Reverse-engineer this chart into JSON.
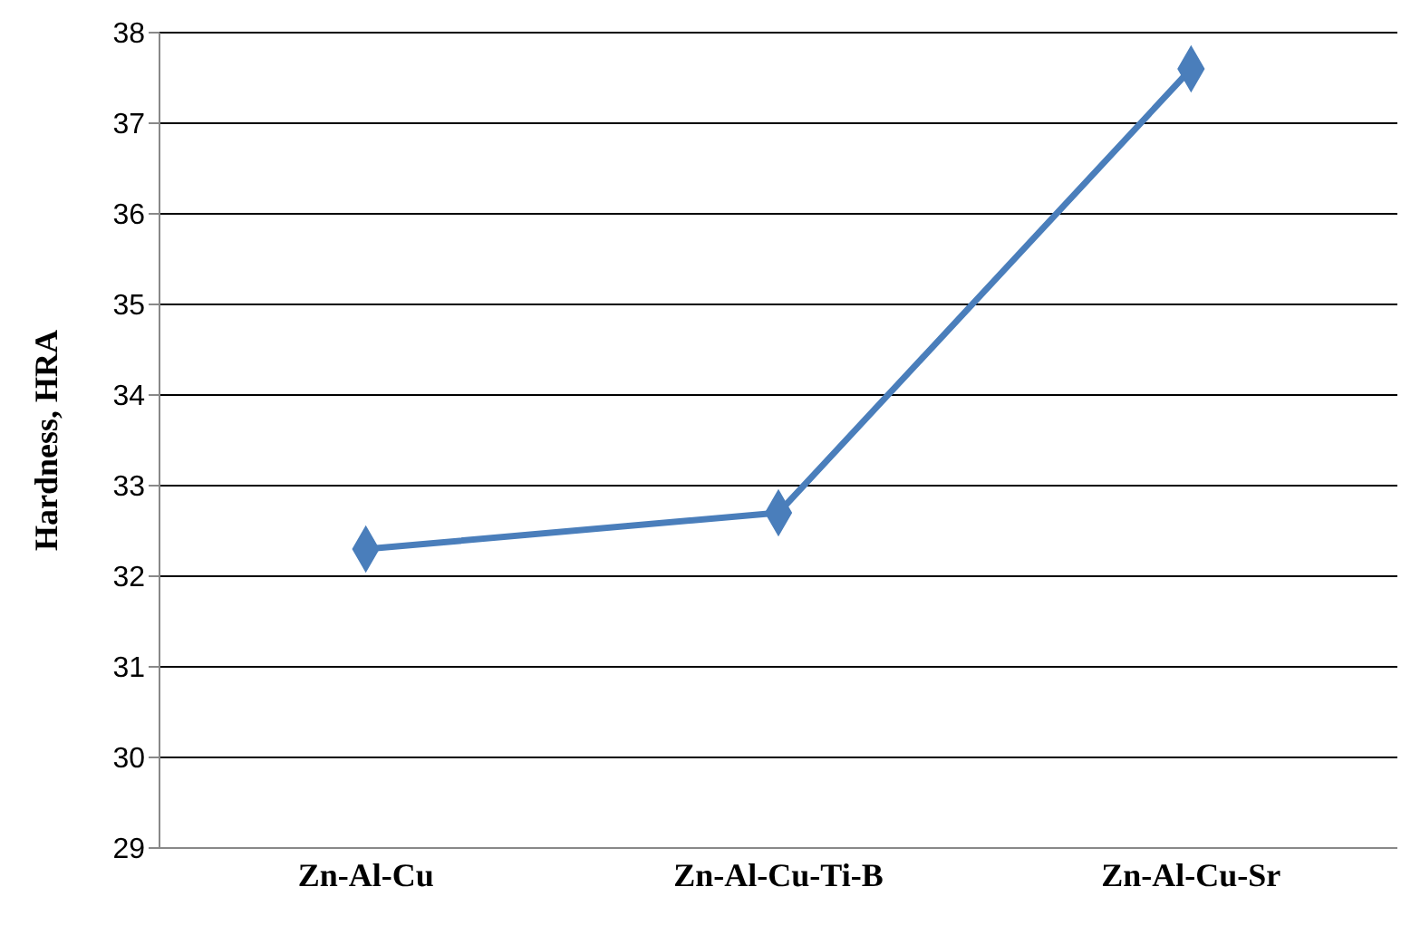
{
  "chart_data": {
    "type": "line",
    "ylabel": "Hardness, HRA",
    "categories": [
      "Zn-Al-Cu",
      "Zn-Al-Cu-Ti-B",
      "Zn-Al-Cu-Sr"
    ],
    "series": [
      {
        "color": "#4a7ebb",
        "values": [
          32.3,
          32.7,
          37.6
        ]
      }
    ],
    "ylim": [
      29,
      38
    ],
    "yticks": [
      29,
      30,
      31,
      32,
      33,
      34,
      35,
      36,
      37,
      38
    ],
    "grid": "y",
    "marker": "diamond",
    "legend": false
  }
}
